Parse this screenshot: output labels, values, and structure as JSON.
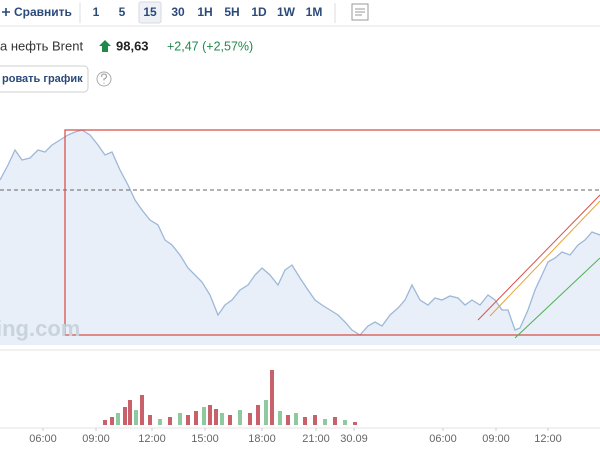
{
  "toolbar": {
    "compare": "Сравнить",
    "intervals": [
      "1",
      "5",
      "15",
      "30",
      "1H",
      "5H",
      "1D",
      "1W",
      "1M"
    ],
    "selected": "15"
  },
  "quote": {
    "name": "а нефть Brent",
    "price": "98,63",
    "change": "+2,47 (+2,57%)"
  },
  "button": "ровать график",
  "watermark": "ing.com",
  "chart_data": [
    {
      "type": "line",
      "color": "#9db8d8",
      "fill": "#e8eff8",
      "x": [
        0,
        8,
        15,
        22,
        30,
        38,
        45,
        52,
        60,
        68,
        75,
        82,
        90,
        98,
        105,
        112,
        120,
        128,
        135,
        142,
        150,
        158,
        165,
        172,
        180,
        188,
        195,
        202,
        210,
        218,
        225,
        232,
        240,
        248,
        255,
        262,
        270,
        278,
        285,
        292,
        300,
        308,
        315,
        322,
        330,
        338,
        345,
        352,
        360,
        368,
        375,
        382,
        390,
        398,
        405,
        412,
        420,
        428,
        435,
        442,
        450,
        458,
        465,
        472,
        480,
        488,
        495,
        502,
        508,
        515,
        520,
        528,
        535,
        542,
        548,
        555,
        562,
        570,
        578,
        585,
        592,
        600
      ],
      "values": [
        165,
        180,
        195,
        185,
        187,
        195,
        193,
        200,
        205,
        210,
        213,
        215,
        210,
        200,
        190,
        193,
        175,
        160,
        145,
        135,
        125,
        120,
        105,
        100,
        90,
        77,
        70,
        63,
        50,
        30,
        40,
        45,
        55,
        60,
        70,
        77,
        70,
        60,
        75,
        80,
        67,
        55,
        45,
        40,
        35,
        30,
        23,
        15,
        10,
        19,
        23,
        19,
        30,
        37,
        45,
        60,
        45,
        40,
        47,
        45,
        49,
        47,
        40,
        45,
        40,
        50,
        45,
        35,
        35,
        15,
        17,
        35,
        55,
        70,
        83,
        87,
        93,
        90,
        100,
        105,
        113,
        110
      ],
      "xlim": [
        0,
        600
      ],
      "ylim": [
        0,
        225
      ],
      "xticks": [
        {
          "value": 43,
          "label": "06:00"
        },
        {
          "value": 96,
          "label": "09:00"
        },
        {
          "value": 152,
          "label": "12:00"
        },
        {
          "value": 205,
          "label": "15:00"
        },
        {
          "value": 262,
          "label": "18:00"
        },
        {
          "value": 316,
          "label": "21:00"
        },
        {
          "value": 354,
          "label": "30.09"
        },
        {
          "value": 443,
          "label": "06:00"
        },
        {
          "value": 496,
          "label": "09:00"
        },
        {
          "value": 548,
          "label": "12:00"
        }
      ]
    },
    {
      "type": "bar",
      "xlim": [
        0,
        600
      ],
      "ylim": [
        0,
        60
      ],
      "x": [
        105,
        112,
        118,
        125,
        130,
        136,
        142,
        150,
        160,
        170,
        180,
        188,
        196,
        204,
        210,
        216,
        222,
        230,
        240,
        250,
        258,
        266,
        272,
        280,
        288,
        296,
        305,
        315,
        325,
        335,
        345,
        355
      ],
      "values": [
        5,
        8,
        12,
        18,
        25,
        15,
        30,
        10,
        6,
        8,
        12,
        10,
        14,
        18,
        20,
        16,
        12,
        10,
        15,
        12,
        20,
        25,
        55,
        14,
        10,
        12,
        8,
        10,
        6,
        8,
        5,
        3
      ],
      "colors": [
        "#c9616b",
        "#c9616b",
        "#8fc9a0",
        "#c9616b",
        "#c9616b",
        "#8fc9a0",
        "#c9616b",
        "#c9616b",
        "#8fc9a0",
        "#c9616b",
        "#8fc9a0",
        "#c9616b",
        "#c9616b",
        "#8fc9a0",
        "#c9616b",
        "#c9616b",
        "#8fc9a0",
        "#c9616b",
        "#8fc9a0",
        "#c9616b",
        "#c9616b",
        "#8fc9a0",
        "#c9616b",
        "#8fc9a0",
        "#c9616b",
        "#8fc9a0",
        "#c9616b",
        "#c9616b",
        "#8fc9a0",
        "#c9616b",
        "#8fc9a0",
        "#c9616b"
      ]
    }
  ]
}
